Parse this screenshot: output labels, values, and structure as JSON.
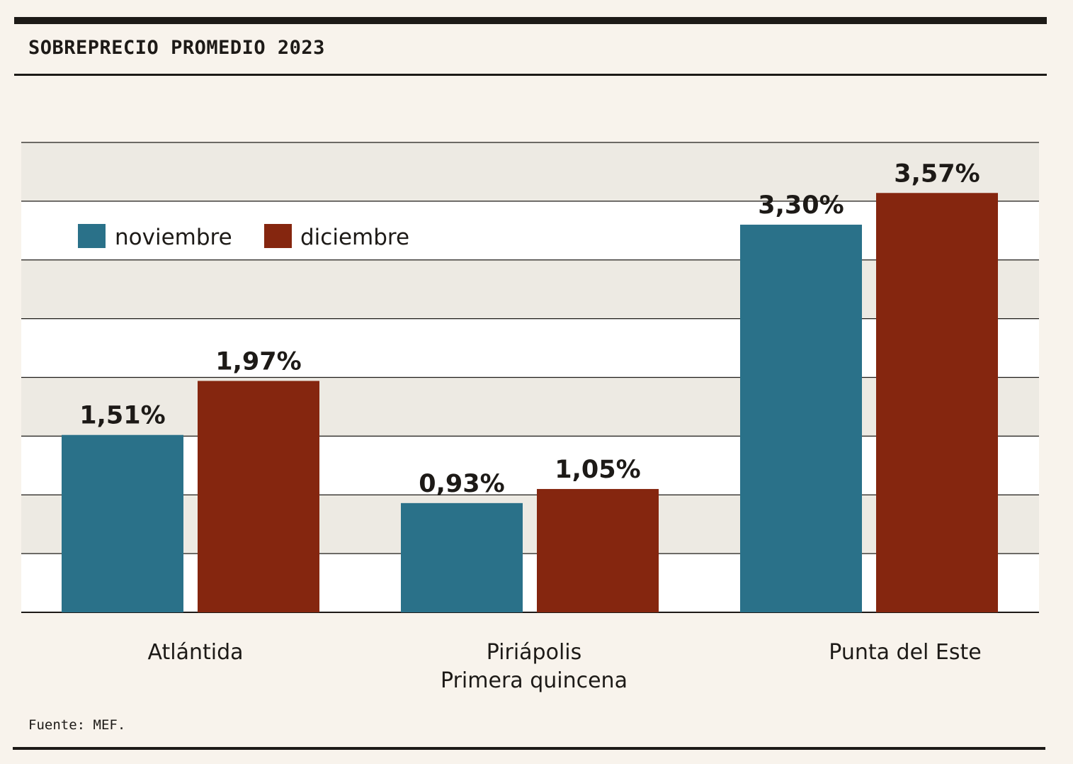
{
  "header": {
    "title": "SOBREPRECIO PROMEDIO 2023"
  },
  "footer": {
    "source": "Fuente: MEF."
  },
  "colors": {
    "background": "#f8f3ec",
    "band": "#edeae3",
    "noviembre": "#2a7189",
    "diciembre": "#85260f",
    "text": "#1d1a17"
  },
  "chart_data": {
    "type": "bar",
    "categories": [
      [
        "Atlántida"
      ],
      [
        "Piriápolis",
        "Primera quincena"
      ],
      [
        "Punta del Este"
      ]
    ],
    "series": [
      {
        "name": "noviembre",
        "values": [
          1.51,
          0.93,
          3.3
        ],
        "labels": [
          "1,51%",
          "0,93%",
          "3,30%"
        ]
      },
      {
        "name": "diciembre",
        "values": [
          1.97,
          1.05,
          3.57
        ],
        "labels": [
          "1,97%",
          "1,05%",
          "3,57%"
        ]
      }
    ],
    "ylim": [
      0,
      4
    ],
    "grid": true,
    "legend_position": "top-left",
    "title": "SOBREPRECIO PROMEDIO 2023",
    "xlabel": "",
    "ylabel": ""
  }
}
